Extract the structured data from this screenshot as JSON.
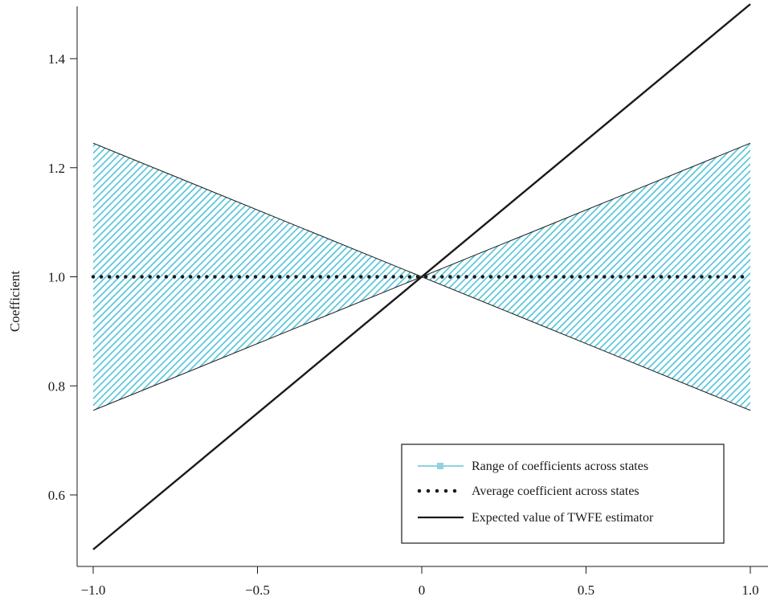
{
  "chart_data": {
    "type": "line",
    "title": "",
    "xlabel": "",
    "ylabel": "Coefficient",
    "xlim": [
      -1.08,
      1.05
    ],
    "ylim": [
      0.46,
      1.5
    ],
    "x_ticks": [
      -1.0,
      -0.5,
      0,
      0.5,
      1.0
    ],
    "x_tick_labels": [
      "−1.0",
      "−0.5",
      "0",
      "0.5",
      "1.0"
    ],
    "y_ticks": [
      0.6,
      0.8,
      1.0,
      1.2,
      1.4
    ],
    "y_tick_labels": [
      "0.6",
      "0.8",
      "1.0",
      "1.2",
      "1.4"
    ],
    "grid": false,
    "legend_position": "bottom-right",
    "series": [
      {
        "name": "Range of coefficients across states",
        "kind": "band",
        "color": "#4fc3d6",
        "x": [
          -1.0,
          0,
          1.0
        ],
        "upper": [
          1.245,
          1.0,
          1.245
        ],
        "lower": [
          0.755,
          1.0,
          0.755
        ]
      },
      {
        "name": "Average coefficient across states",
        "kind": "dotted-line",
        "color": "#1a1a1a",
        "x": [
          -1.0,
          1.0
        ],
        "y": [
          1.0,
          1.0
        ]
      },
      {
        "name": "Expected value of TWFE estimator",
        "kind": "solid-line",
        "color": "#1a1a1a",
        "x": [
          -1.0,
          1.0
        ],
        "y": [
          0.5,
          1.5
        ]
      }
    ]
  }
}
